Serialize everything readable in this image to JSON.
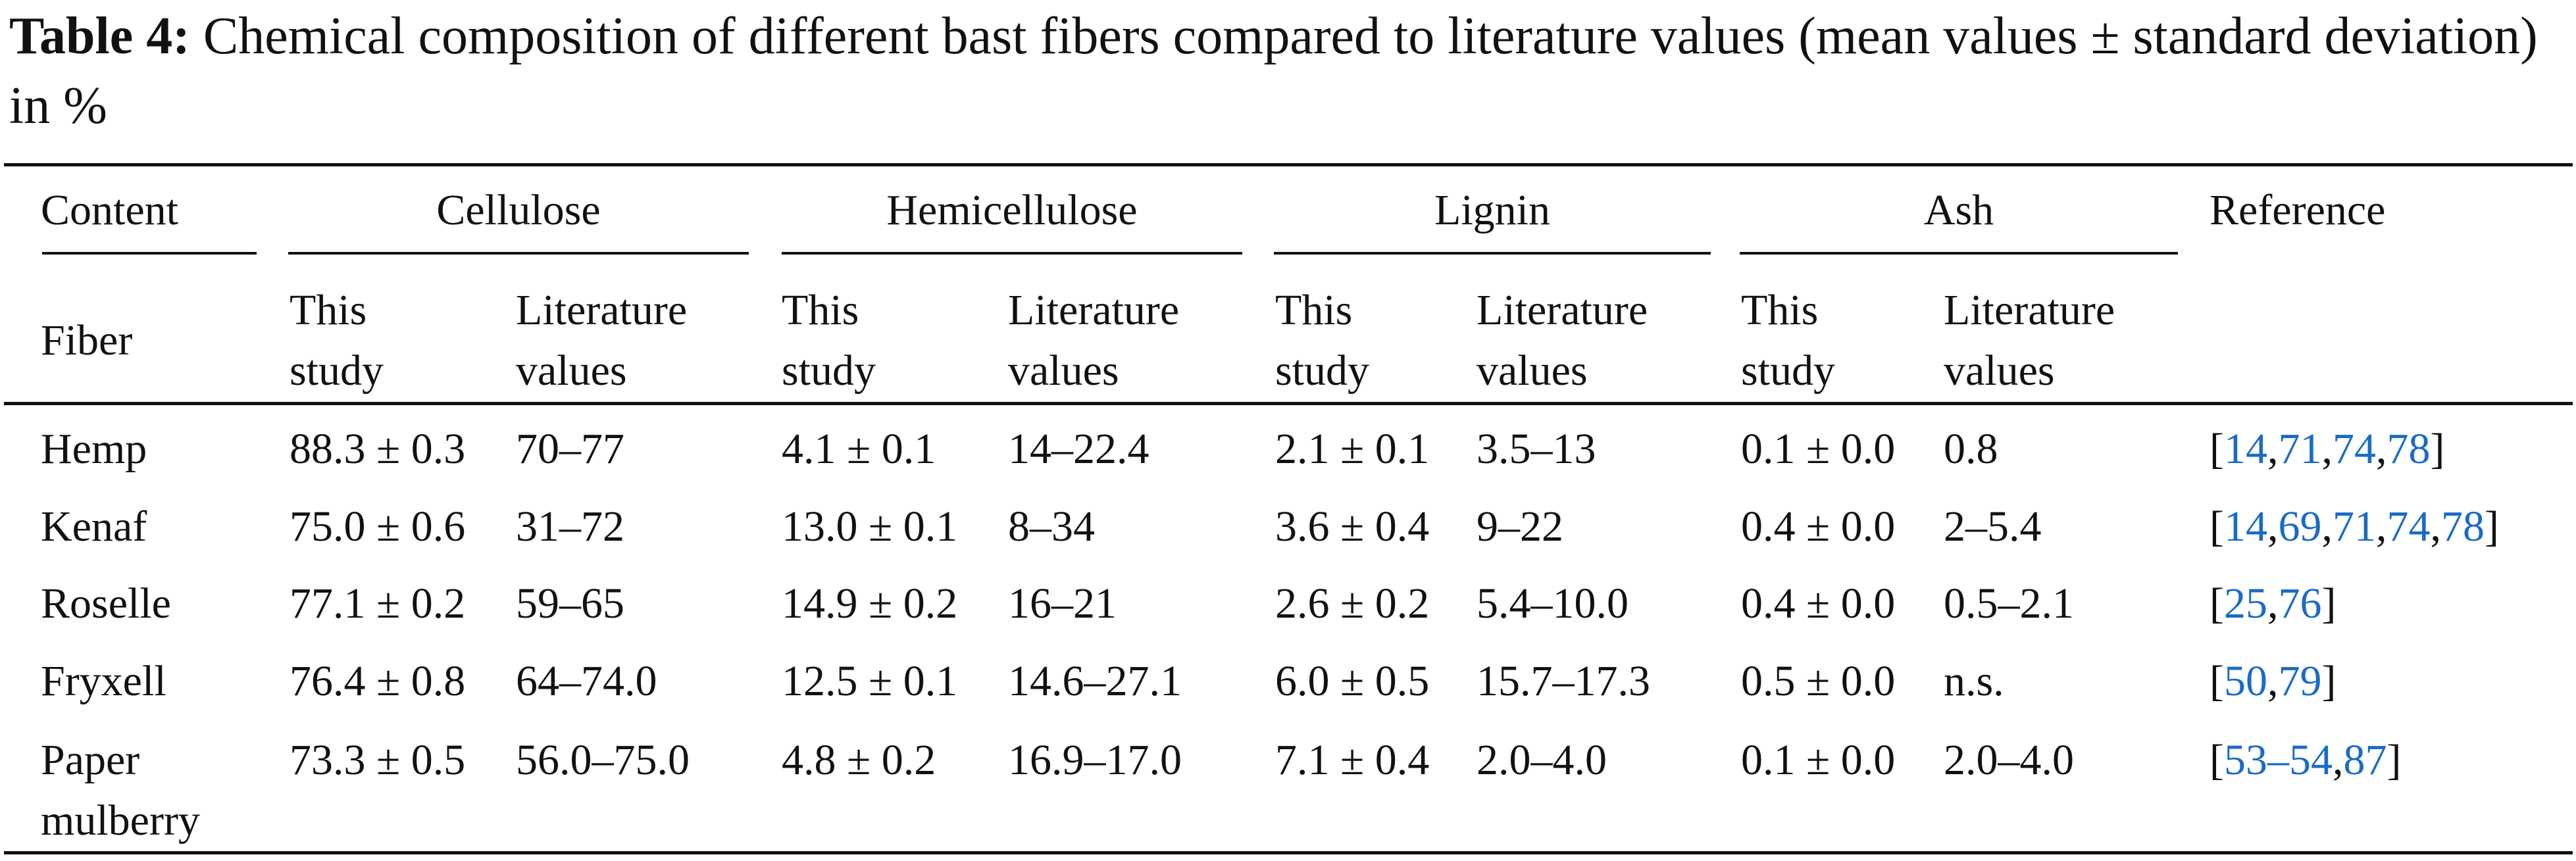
{
  "caption": {
    "label": "Table 4:",
    "text": "Chemical composition of different bast fibers compared to literature values (mean values ± standard deviation) in %"
  },
  "header": {
    "content": "Content",
    "fiber": "Fiber",
    "reference": "Reference",
    "groups": [
      "Cellulose",
      "Hemicellulose",
      "Lignin",
      "Ash"
    ],
    "sub_this_1": "This",
    "sub_this_2": "study",
    "sub_lit_1": "Literature",
    "sub_lit_2": "values"
  },
  "rows": [
    {
      "fiber": "Hemp",
      "fiber2": "",
      "cellulose_this": "88.3 ± 0.3",
      "cellulose_lit": "70–77",
      "hemicellulose_this": "4.1 ± 0.1",
      "hemicellulose_lit": "14–22.4",
      "lignin_this": "2.1 ± 0.1",
      "lignin_lit": "3.5–13",
      "ash_this": "0.1 ± 0.0",
      "ash_lit": "0.8",
      "refs": [
        "14",
        "71",
        "74",
        "78"
      ]
    },
    {
      "fiber": "Kenaf",
      "fiber2": "",
      "cellulose_this": "75.0 ± 0.6",
      "cellulose_lit": "31–72",
      "hemicellulose_this": "13.0 ± 0.1",
      "hemicellulose_lit": "8–34",
      "lignin_this": "3.6 ± 0.4",
      "lignin_lit": "9–22",
      "ash_this": "0.4 ± 0.0",
      "ash_lit": "2–5.4",
      "refs": [
        "14",
        "69",
        "71",
        "74",
        "78"
      ]
    },
    {
      "fiber": "Roselle",
      "fiber2": "",
      "cellulose_this": "77.1 ± 0.2",
      "cellulose_lit": "59–65",
      "hemicellulose_this": "14.9 ± 0.2",
      "hemicellulose_lit": "16–21",
      "lignin_this": "2.6 ± 0.2",
      "lignin_lit": "5.4–10.0",
      "ash_this": "0.4 ± 0.0",
      "ash_lit": "0.5–2.1",
      "refs": [
        "25",
        "76"
      ]
    },
    {
      "fiber": "Fryxell",
      "fiber2": "",
      "cellulose_this": "76.4 ± 0.8",
      "cellulose_lit": "64–74.0",
      "hemicellulose_this": "12.5 ± 0.1",
      "hemicellulose_lit": "14.6–27.1",
      "lignin_this": "6.0 ± 0.5",
      "lignin_lit": "15.7–17.3",
      "ash_this": "0.5 ± 0.0",
      "ash_lit": "n.s.",
      "refs": [
        "50",
        "79"
      ]
    },
    {
      "fiber": "Paper",
      "fiber2": "mulberry",
      "cellulose_this": "73.3 ± 0.5",
      "cellulose_lit": "56.0–75.0",
      "hemicellulose_this": "4.8 ± 0.2",
      "hemicellulose_lit": "16.9–17.0",
      "lignin_this": "7.1 ± 0.4",
      "lignin_lit": "2.0–4.0",
      "ash_this": "0.1 ± 0.0",
      "ash_lit": "2.0–4.0",
      "refs": [
        "53–54",
        "87"
      ]
    }
  ]
}
